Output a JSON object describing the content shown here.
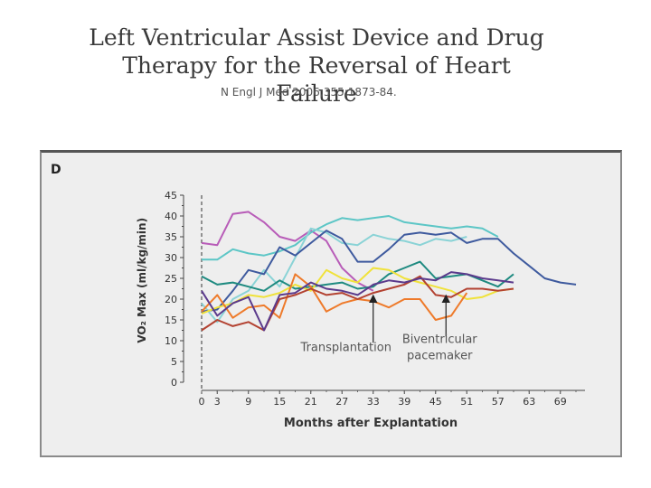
{
  "header": {
    "title_line1": "Left Ventricular Assist Device and Drug",
    "title_line2": "Therapy for the Reversal of Heart Failure",
    "citation": "N Engl J Med 2006;355:1873-84."
  },
  "chart_data": {
    "type": "line",
    "panel_label": "D",
    "xlabel": "Months after Explantation",
    "ylabel": "VO₂ Max (ml/kg/min)",
    "xlim": [
      0,
      72
    ],
    "ylim": [
      0,
      45
    ],
    "x_ticks": [
      0,
      3,
      9,
      15,
      21,
      27,
      33,
      39,
      45,
      51,
      57,
      63,
      69
    ],
    "y_ticks": [
      0,
      5,
      10,
      15,
      20,
      25,
      30,
      35,
      40,
      45
    ],
    "annotations": [
      {
        "text": "Transplantation",
        "x": 33,
        "y": 21
      },
      {
        "text_line1": "Biventricular",
        "text_line2": "pacemaker",
        "x": 47,
        "y": 21
      }
    ],
    "series": [
      {
        "color": "#b85cb8",
        "x": [
          0,
          3,
          6,
          9,
          12,
          15,
          18,
          21,
          24,
          27,
          30,
          33
        ],
        "y": [
          33.5,
          33,
          40.5,
          41,
          38.5,
          35,
          34,
          36.5,
          34,
          27.5,
          24,
          22
        ]
      },
      {
        "color": "#5cc6c6",
        "x": [
          0,
          3,
          6,
          9,
          12,
          15,
          18,
          21,
          24,
          27,
          30,
          33,
          36,
          39,
          42,
          45,
          48,
          51,
          54,
          57
        ],
        "y": [
          29.5,
          29.5,
          32,
          31,
          30.5,
          31.5,
          33,
          36,
          38,
          39.5,
          39,
          39.5,
          40,
          38.5,
          38,
          37.5,
          37,
          37.5,
          37,
          35
        ]
      },
      {
        "color": "#8ad3d6",
        "x": [
          0,
          3,
          6,
          9,
          12,
          15,
          18,
          21,
          24,
          27,
          30,
          33,
          36,
          39,
          42,
          45,
          48,
          51
        ],
        "y": [
          19,
          14.5,
          20,
          22,
          27,
          23,
          30,
          37,
          36,
          33.5,
          33,
          35.5,
          34.5,
          34,
          33,
          34.5,
          34,
          35
        ]
      },
      {
        "color": "#3e5a9e",
        "x": [
          0,
          3,
          6,
          9,
          12,
          15,
          18,
          21,
          24,
          27,
          30,
          33,
          36,
          39,
          42,
          45,
          48,
          51,
          54,
          57,
          60,
          63,
          66,
          69,
          72
        ],
        "y": [
          17,
          17.5,
          22,
          27,
          26,
          32.5,
          30.5,
          33.5,
          36.5,
          34.5,
          29,
          29,
          32,
          35.5,
          36,
          35.5,
          36,
          33.5,
          34.5,
          34.5,
          31,
          28,
          25,
          24,
          23.5
        ]
      },
      {
        "color": "#1e8a80",
        "x": [
          0,
          3,
          6,
          9,
          12,
          15,
          18,
          21,
          24,
          27,
          30,
          33,
          36,
          39,
          42,
          45,
          48,
          51,
          54,
          57,
          60
        ],
        "y": [
          25.5,
          23.5,
          24,
          23,
          22,
          24.5,
          22.5,
          23,
          23.5,
          24,
          22.5,
          23,
          26,
          27.5,
          29,
          25,
          25.5,
          26,
          24.5,
          23,
          26
        ]
      },
      {
        "color": "#f0e23a",
        "x": [
          0,
          3,
          6,
          9,
          12,
          15,
          18,
          21,
          24,
          27,
          30,
          33,
          36,
          39,
          42,
          45,
          48,
          51,
          54,
          57,
          60
        ],
        "y": [
          16.5,
          18,
          19,
          21,
          20.5,
          21.5,
          23.5,
          22,
          27,
          25,
          24,
          27.5,
          27,
          25,
          24,
          23,
          22,
          20,
          20.5,
          22,
          22.5
        ]
      },
      {
        "color": "#ee7a2a",
        "x": [
          0,
          3,
          6,
          9,
          12,
          15,
          18,
          21,
          24,
          27,
          30,
          33,
          36,
          39,
          42,
          45,
          48,
          51
        ],
        "y": [
          17,
          21,
          15.5,
          18,
          18.5,
          15.5,
          26,
          23,
          17,
          19,
          20,
          19.5,
          18,
          20,
          20,
          15,
          16,
          21.5
        ]
      },
      {
        "color": "#b34231",
        "x": [
          0,
          3,
          6,
          9,
          12,
          15,
          18,
          21,
          24,
          27,
          30,
          33,
          36,
          39,
          42,
          45,
          48,
          51,
          54,
          57,
          60
        ],
        "y": [
          12.5,
          15,
          13.5,
          14.5,
          12.5,
          20,
          21,
          22.5,
          21,
          21.5,
          20,
          21.5,
          22.5,
          23.5,
          25.5,
          21,
          20.5,
          22.5,
          22.5,
          22,
          22.5
        ]
      },
      {
        "color": "#5b3a8c",
        "x": [
          0,
          3,
          6,
          9,
          12,
          15,
          18,
          21,
          24,
          27,
          30,
          33,
          36,
          39,
          42,
          45,
          48,
          51,
          54,
          57,
          60
        ],
        "y": [
          22,
          16,
          19,
          20.5,
          12.5,
          21,
          21.5,
          24,
          22.5,
          22,
          21,
          23.5,
          24.5,
          24,
          25,
          24.5,
          26.5,
          26,
          25,
          24.5,
          24
        ]
      }
    ]
  }
}
